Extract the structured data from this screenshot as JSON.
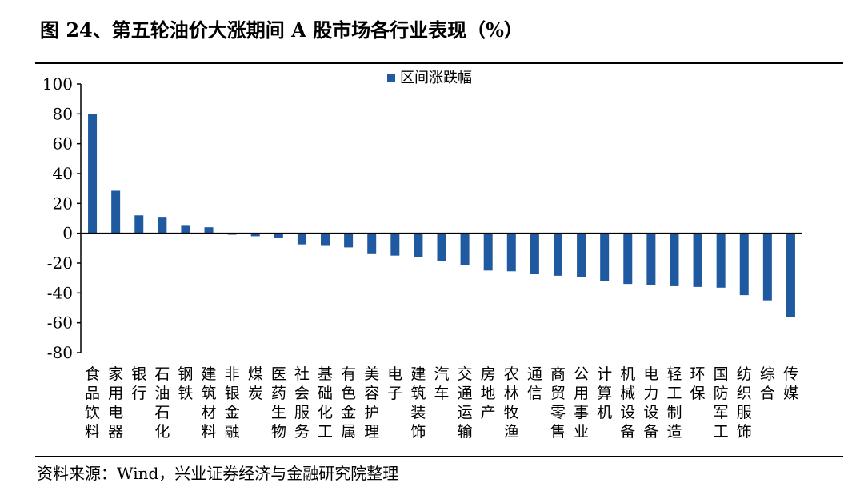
{
  "figure": {
    "title": "图 24、第五轮油价大涨期间 A 股市场各行业表现（%）",
    "source": "资料来源：Wind，兴业证券经济与金融研究院整理"
  },
  "colors": {
    "bar": "#1f5aa0",
    "axis": "#000000"
  },
  "chart_data": {
    "type": "bar",
    "title": "",
    "xlabel": "",
    "ylabel": "",
    "ylim": [
      -80,
      100
    ],
    "yticks": [
      100,
      80,
      60,
      40,
      20,
      0,
      -20,
      -40,
      -60,
      -80
    ],
    "grid": false,
    "legend_position": "top-center",
    "categories": [
      "食品饮料",
      "家用电器",
      "银行",
      "石油石化",
      "钢铁",
      "建筑材料",
      "非银金融",
      "煤炭",
      "医药生物",
      "社会服务",
      "基础化工",
      "有色金属",
      "美容护理",
      "电子",
      "建筑装饰",
      "汽车",
      "交通运输",
      "房地产",
      "农林牧渔",
      "通信",
      "商贸零售",
      "公用事业",
      "计算机",
      "机械设备",
      "电力设备",
      "轻工制造",
      "环保",
      "国防军工",
      "纺织服饰",
      "综合",
      "传媒"
    ],
    "series": [
      {
        "name": "区间涨跌幅",
        "values": [
          80,
          28.5,
          12,
          11,
          5.5,
          4,
          -1,
          -2,
          -3,
          -7.5,
          -8.5,
          -9.5,
          -14,
          -15,
          -16,
          -18.5,
          -21.5,
          -25,
          -25.5,
          -27.5,
          -28.5,
          -29.5,
          -32,
          -34,
          -35,
          -35.5,
          -36,
          -36.5,
          -41.5,
          -45,
          -56
        ]
      }
    ]
  }
}
